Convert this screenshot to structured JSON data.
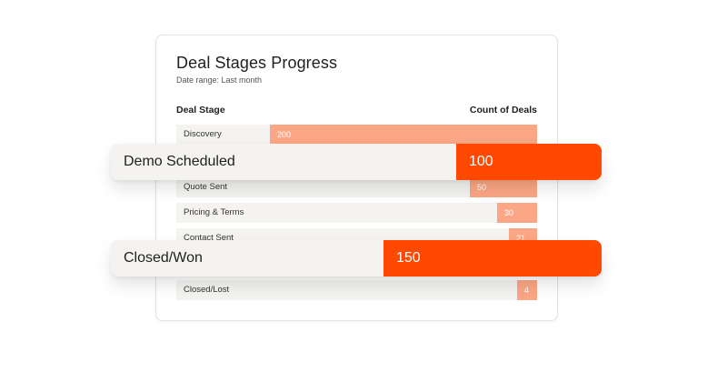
{
  "widget": {
    "title": "Deal Stages Progress",
    "date_range": "Date range: Last month",
    "col_stage": "Deal Stage",
    "col_count": "Count of Deals"
  },
  "colors": {
    "bar_light": "#fba684",
    "bar_strong": "#ff4800",
    "row_bg": "#f4f3ef"
  },
  "chart_data": {
    "type": "bar",
    "orientation": "horizontal",
    "xlim": [
      0,
      270
    ],
    "categories": [
      "Discovery",
      "Demo Scheduled",
      "Quote Sent",
      "Pricing & Terms",
      "Contact Sent",
      "Closed/Won",
      "Closed/Lost"
    ],
    "values": [
      200,
      100,
      50,
      30,
      21,
      150,
      4
    ],
    "rows": [
      {
        "label": "Discovery",
        "value": "200",
        "n": 200
      },
      {
        "label": "Quote Sent",
        "value": "50",
        "n": 50
      },
      {
        "label": "Pricing & Terms",
        "value": "30",
        "n": 30
      },
      {
        "label": "Contact Sent",
        "value": "21",
        "n": 21
      },
      {
        "label": "Closed/Lost",
        "value": "4",
        "n": 4
      }
    ],
    "highlights": [
      {
        "label": "Demo Scheduled",
        "value": "100",
        "n": 100
      },
      {
        "label": "Closed/Won",
        "value": "150",
        "n": 150
      }
    ]
  }
}
